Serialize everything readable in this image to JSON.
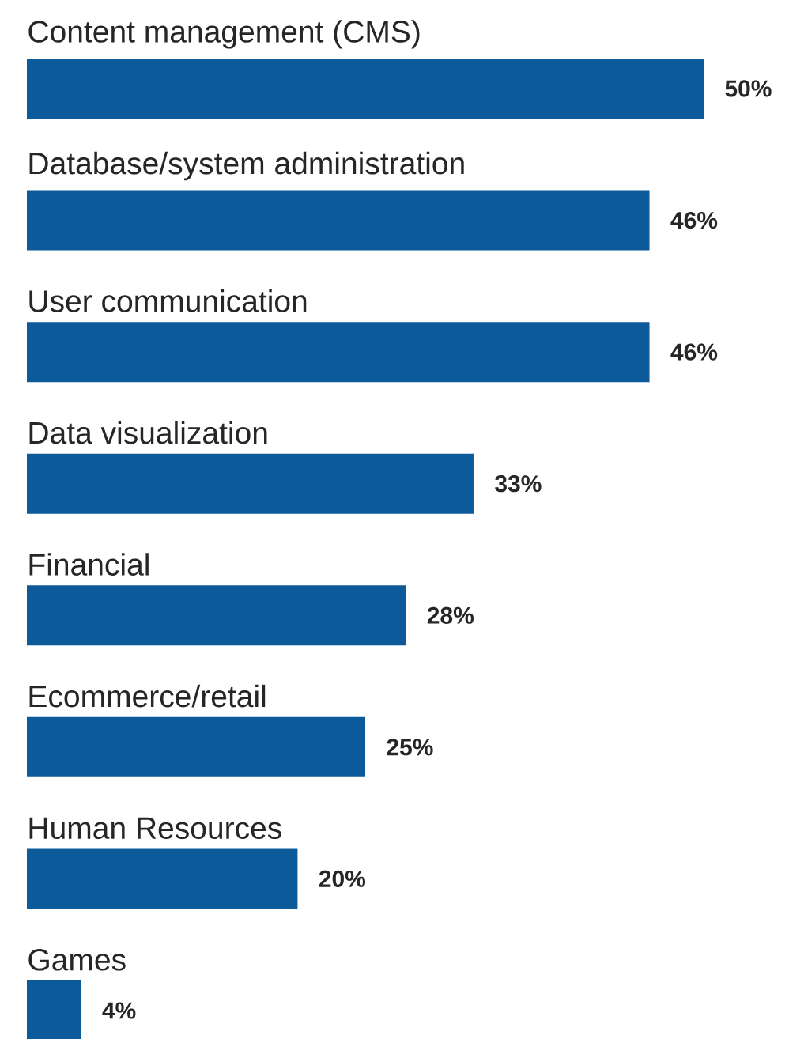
{
  "chart_data": {
    "type": "bar",
    "orientation": "horizontal",
    "categories": [
      "Content management (CMS)",
      "Database/system administration",
      "User communication",
      "Data visualization",
      "Financial",
      "Ecommerce/retail",
      "Human Resources",
      "Games"
    ],
    "values": [
      50,
      46,
      46,
      33,
      28,
      25,
      20,
      4
    ],
    "value_labels": [
      "50%",
      "46%",
      "46%",
      "33%",
      "28%",
      "25%",
      "20%",
      "4%"
    ],
    "color": "#0d5a9a"
  }
}
